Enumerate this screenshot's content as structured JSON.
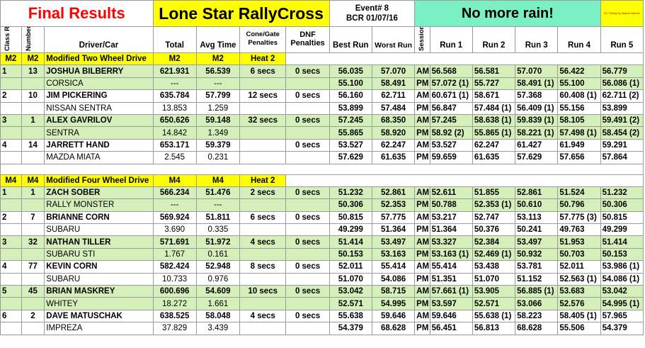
{
  "banner": {
    "final_results": "Final Results",
    "event_name": "Lone Star RallyCross",
    "event_number": "Event# 8",
    "event_code": "BCR 01/07/16",
    "weather": "No more rain!",
    "timing_credit": "SC Timing by Wayne Bandel"
  },
  "headers": {
    "class_rank": "Class Rank",
    "number": "Number",
    "driver_car": "Driver/Car",
    "total": "Total",
    "avg_time": "Avg Time",
    "cone_gate": "Cone/Gate Penalties",
    "dnf": "DNF Penalties",
    "best_run": "Best Run",
    "worst_run": "Worst Run",
    "session": "Session",
    "run1": "Run 1",
    "run2": "Run 2",
    "run3": "Run 3",
    "run4": "Run 4",
    "run5": "Run 5"
  },
  "classes": [
    {
      "code": "M2",
      "code2": "M2",
      "name": "Modified Two Wheel Drive",
      "total_label": "M2",
      "avg_label": "M2",
      "heat": "Heat 2",
      "entries": [
        {
          "rank": "1",
          "number": "13",
          "driver": "JOSHUA BILBERRY",
          "car": "CORSICA",
          "total": "621.931",
          "avg": "56.539",
          "cone": "6 secs",
          "dnf": "0 secs",
          "diff_total": "---",
          "diff_avg": "---",
          "am": {
            "best": "56.035",
            "worst": "57.070",
            "session": "AM",
            "runs": [
              "56.568",
              "56.581",
              "57.070",
              "56.422",
              "56.779"
            ]
          },
          "pm": {
            "best": "55.100",
            "worst": "58.491",
            "session": "PM",
            "runs": [
              "57.072 (1)",
              "55.727",
              "58.491 (1)",
              "55.100",
              "56.086 (1)"
            ]
          },
          "shade": "green"
        },
        {
          "rank": "2",
          "number": "10",
          "driver": "JIM PICKERING",
          "car": "NISSAN SENTRA",
          "total": "635.784",
          "avg": "57.799",
          "cone": "12 secs",
          "dnf": "0 secs",
          "diff_total": "13.853",
          "diff_avg": "1.259",
          "am": {
            "best": "56.160",
            "worst": "62.711",
            "session": "AM",
            "runs": [
              "60.671 (1)",
              "58.671",
              "57.368",
              "60.408 (1)",
              "62.711 (2)"
            ]
          },
          "pm": {
            "best": "53.899",
            "worst": "57.484",
            "session": "PM",
            "runs": [
              "56.847",
              "57.484 (1)",
              "56.409 (1)",
              "55.156",
              "53.899"
            ]
          },
          "shade": "white"
        },
        {
          "rank": "3",
          "number": "1",
          "driver": "ALEX GAVRILOV",
          "car": "SENTRA",
          "total": "650.626",
          "avg": "59.148",
          "cone": "32 secs",
          "dnf": "0 secs",
          "diff_total": "14.842",
          "diff_avg": "1.349",
          "am": {
            "best": "57.245",
            "worst": "68.350",
            "session": "AM",
            "runs": [
              "57.245",
              "58.638 (1)",
              "59.839 (1)",
              "58.105",
              "59.491 (2)"
            ]
          },
          "pm": {
            "best": "55.865",
            "worst": "58.920",
            "session": "PM",
            "runs": [
              "58.92 (2)",
              "55.865 (1)",
              "58.221 (1)",
              "57.498 (1)",
              "58.454 (2)"
            ]
          },
          "shade": "green"
        },
        {
          "rank": "4",
          "number": "14",
          "driver": "JARRETT HAND",
          "car": "MAZDA MIATA",
          "total": "653.171",
          "avg": "59.379",
          "cone": "",
          "dnf": "0 secs",
          "diff_total": "2.545",
          "diff_avg": "0.231",
          "am": {
            "best": "53.527",
            "worst": "62.247",
            "session": "AM",
            "runs": [
              "53.527",
              "62.247",
              "61.427",
              "61.949",
              "59.291"
            ]
          },
          "pm": {
            "best": "57.629",
            "worst": "61.635",
            "session": "PM",
            "runs": [
              "59.659",
              "61.635",
              "57.629",
              "57.656",
              "57.864"
            ]
          },
          "shade": "white"
        }
      ]
    },
    {
      "code": "M4",
      "code2": "M4",
      "name": "Modified Four Wheel Drive",
      "total_label": "M4",
      "avg_label": "M4",
      "heat": "Heat 2",
      "entries": [
        {
          "rank": "1",
          "number": "1",
          "driver": "ZACH SOBER",
          "car": "RALLY MONSTER",
          "total": "566.234",
          "avg": "51.476",
          "cone": "2 secs",
          "dnf": "0 secs",
          "diff_total": "---",
          "diff_avg": "---",
          "am": {
            "best": "51.232",
            "worst": "52.861",
            "session": "AM",
            "runs": [
              "52.611",
              "51.855",
              "52.861",
              "51.524",
              "51.232"
            ]
          },
          "pm": {
            "best": "50.306",
            "worst": "52.353",
            "session": "PM",
            "runs": [
              "50.788",
              "52.353 (1)",
              "50.610",
              "50.796",
              "50.306"
            ]
          },
          "shade": "green"
        },
        {
          "rank": "2",
          "number": "7",
          "driver": "BRIANNE CORN",
          "car": "SUBARU",
          "total": "569.924",
          "avg": "51.811",
          "cone": "6 secs",
          "dnf": "0 secs",
          "diff_total": "3.690",
          "diff_avg": "0.335",
          "am": {
            "best": "50.815",
            "worst": "57.775",
            "session": "AM",
            "runs": [
              "53.217",
              "52.747",
              "53.113",
              "57.775 (3)",
              "50.815"
            ]
          },
          "pm": {
            "best": "49.299",
            "worst": "51.364",
            "session": "PM",
            "runs": [
              "51.364",
              "50.376",
              "50.241",
              "49.763",
              "49.299"
            ]
          },
          "shade": "white"
        },
        {
          "rank": "3",
          "number": "32",
          "driver": "NATHAN TILLER",
          "car": "SUBARU STI",
          "total": "571.691",
          "avg": "51.972",
          "cone": "4 secs",
          "dnf": "0 secs",
          "diff_total": "1.767",
          "diff_avg": "0.161",
          "am": {
            "best": "51.414",
            "worst": "53.497",
            "session": "AM",
            "runs": [
              "53.327",
              "52.384",
              "53.497",
              "51.953",
              "51.414"
            ]
          },
          "pm": {
            "best": "50.153",
            "worst": "53.163",
            "session": "PM",
            "runs": [
              "53.163 (1)",
              "52.469 (1)",
              "50.932",
              "50.703",
              "50.153"
            ]
          },
          "shade": "green"
        },
        {
          "rank": "4",
          "number": "77",
          "driver": "KEVIN CORN",
          "car": "SUBARU",
          "total": "582.424",
          "avg": "52.948",
          "cone": "8 secs",
          "dnf": "0 secs",
          "diff_total": "10.733",
          "diff_avg": "0.976",
          "am": {
            "best": "52.011",
            "worst": "55.414",
            "session": "AM",
            "runs": [
              "55.414",
              "53.438",
              "53.781",
              "52.011",
              "53.986 (1)"
            ]
          },
          "pm": {
            "best": "51.070",
            "worst": "54.086",
            "session": "PM",
            "runs": [
              "51.351",
              "51.070",
              "51.152",
              "52.563 (1)",
              "54.086 (1)"
            ]
          },
          "shade": "white"
        },
        {
          "rank": "5",
          "number": "45",
          "driver": "BRIAN MASKREY",
          "car": "WHITEY",
          "total": "600.696",
          "avg": "54.609",
          "cone": "10 secs",
          "dnf": "0 secs",
          "diff_total": "18.272",
          "diff_avg": "1.661",
          "am": {
            "best": "53.042",
            "worst": "58.715",
            "session": "AM",
            "runs": [
              "57.661 (1)",
              "53.905",
              "56.885 (1)",
              "53.683",
              "53.042"
            ]
          },
          "pm": {
            "best": "52.571",
            "worst": "54.995",
            "session": "PM",
            "runs": [
              "53.597",
              "52.571",
              "53.066",
              "52.576",
              "54.995 (1)"
            ]
          },
          "shade": "green"
        },
        {
          "rank": "6",
          "number": "2",
          "driver": "DAVE MATUSCHAK",
          "car": "IMPREZA",
          "total": "638.525",
          "avg": "58.048",
          "cone": "4 secs",
          "dnf": "0 secs",
          "diff_total": "37.829",
          "diff_avg": "3.439",
          "am": {
            "best": "55.638",
            "worst": "59.646",
            "session": "AM",
            "runs": [
              "59.646",
              "55.638 (1)",
              "58.223",
              "58.405 (1)",
              "57.965"
            ]
          },
          "pm": {
            "best": "54.379",
            "worst": "68.628",
            "session": "PM",
            "runs": [
              "56.451",
              "56.813",
              "68.628",
              "55.506",
              "54.379"
            ]
          },
          "shade": "white"
        }
      ]
    }
  ],
  "colors": {
    "yellow": "#ffff00",
    "mint": "#7cf0c5",
    "green": "#d5efba",
    "red": "#ff0000"
  }
}
